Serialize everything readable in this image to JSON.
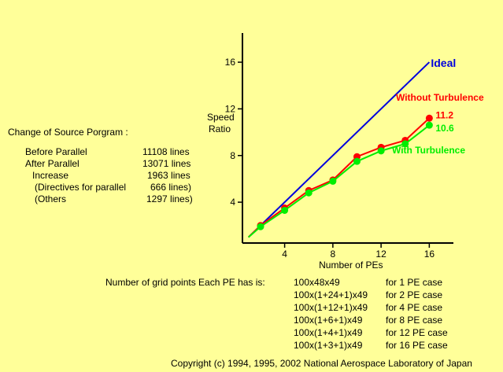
{
  "chart_data": {
    "type": "line",
    "xlabel": "Number of PEs",
    "ylabel_line1": "Speed",
    "ylabel_line2": "Ratio",
    "xlim": [
      0.5,
      18
    ],
    "ylim": [
      0.5,
      18.5
    ],
    "xticks": [
      4,
      8,
      12,
      16
    ],
    "yticks": [
      4,
      8,
      12,
      16
    ],
    "ideal": {
      "name": "Ideal",
      "color": "#0000dd",
      "x": [
        1,
        16
      ],
      "y": [
        1,
        16
      ]
    },
    "series": [
      {
        "name": "Without Turbulence",
        "color": "#ff0000",
        "x": [
          1,
          2,
          4,
          6,
          8,
          10,
          12,
          14,
          16
        ],
        "y": [
          1.0,
          2.0,
          3.5,
          5.0,
          5.9,
          7.9,
          8.7,
          9.3,
          11.2
        ],
        "end_label": "11.2"
      },
      {
        "name": "With Turbulence",
        "color": "#00ee00",
        "x": [
          1,
          2,
          4,
          6,
          8,
          10,
          12,
          14,
          16
        ],
        "y": [
          1.0,
          1.9,
          3.3,
          4.8,
          5.8,
          7.5,
          8.4,
          9.0,
          10.6
        ],
        "end_label": "10.6"
      }
    ],
    "grid": false
  },
  "source_change": {
    "title": "Change of Source Porgram :",
    "rows": [
      {
        "label": "Before Parallel",
        "value": "11108 lines"
      },
      {
        "label": "After Parallel",
        "value": "13071 lines"
      },
      {
        "label": "Increase",
        "value": "1963 lines"
      },
      {
        "label": "(Directives for parallel",
        "value": "666 lines)"
      },
      {
        "label": "(Others",
        "value": "1297 lines)"
      }
    ]
  },
  "grid_points": {
    "heading": "Number of grid points Each PE has is:",
    "rows": [
      {
        "dims": "100x48x49",
        "case": "for 1 PE case"
      },
      {
        "dims": "100x(1+24+1)x49",
        "case": "for 2 PE case"
      },
      {
        "dims": "100x(1+12+1)x49",
        "case": "for 4 PE case"
      },
      {
        "dims": "100x(1+6+1)x49",
        "case": "for 8 PE case"
      },
      {
        "dims": "100x(1+4+1)x49",
        "case": "for 12 PE case"
      },
      {
        "dims": "100x(1+3+1)x49",
        "case": "for 16 PE case"
      }
    ]
  },
  "copyright": "Copyright (c) 1994, 1995, 2002 National Aerospace Laboratory of Japan"
}
